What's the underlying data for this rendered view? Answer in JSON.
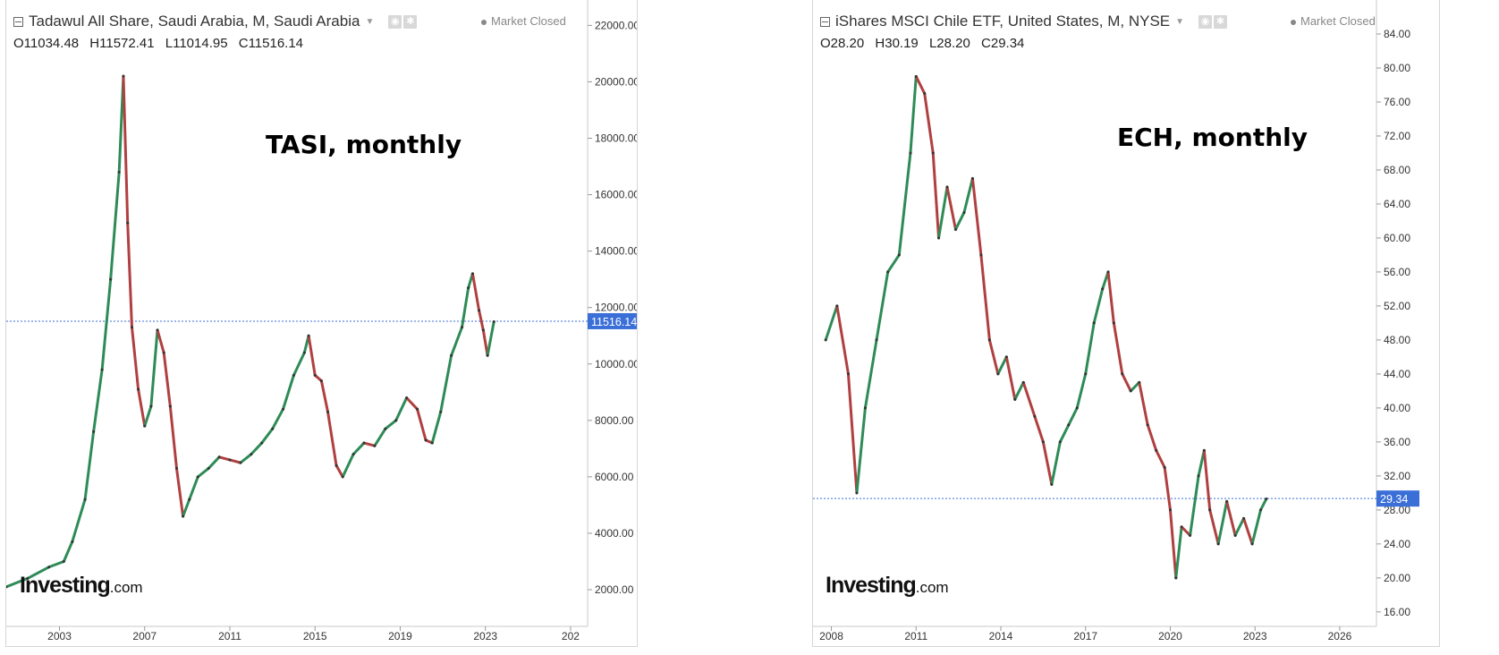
{
  "charts": [
    {
      "header": {
        "title": "Tadawul All Share, Saudi Arabia, M, Saudi Arabia",
        "market_status": "Market Closed",
        "ohlc": {
          "o": "11034.48",
          "h": "11572.41",
          "l": "11014.95",
          "c": "11516.14"
        }
      },
      "annotation": "TASI, monthly",
      "logo": {
        "bold": "Investing",
        "suffix": ".com"
      },
      "last_price_label": "11516.14"
    },
    {
      "header": {
        "title": "iShares MSCI Chile ETF, United States, M, NYSE",
        "market_status": "Market Closed",
        "ohlc": {
          "o": "28.20",
          "h": "30.19",
          "l": "28.20",
          "c": "29.34"
        }
      },
      "annotation": "ECH, monthly",
      "logo": {
        "bold": "Investing",
        "suffix": ".com"
      },
      "last_price_label": "29.34"
    }
  ],
  "chart_data": [
    {
      "type": "line",
      "title": "Tadawul All Share, Saudi Arabia, M, Saudi Arabia",
      "annotation": "TASI, monthly",
      "x_ticks": [
        "2003",
        "2007",
        "2011",
        "2015",
        "2019",
        "2023",
        "202"
      ],
      "y_ticks": [
        "2000.00",
        "4000.00",
        "6000.00",
        "8000.00",
        "10000.00",
        "12000.00",
        "14000.00",
        "16000.00",
        "18000.00",
        "20000.00",
        "22000.00"
      ],
      "xlim": [
        2000.5,
        2027.8
      ],
      "ylim": [
        700,
        22900
      ],
      "last_price": 11516.14,
      "colors": {
        "up": "#2e8b57",
        "down": "#b04040",
        "price_line": "#3b6fd8"
      },
      "series": [
        {
          "x": [
            2000.5,
            2001.5,
            2002.5,
            2003.2,
            2003.6,
            2004.2,
            2004.6,
            2005.0,
            2005.4,
            2005.8,
            2006.0,
            2006.2,
            2006.4,
            2006.7,
            2007.0,
            2007.3,
            2007.6,
            2007.9,
            2008.2,
            2008.5,
            2008.8,
            2009.1,
            2009.5,
            2010.0,
            2010.5,
            2011.0,
            2011.5,
            2012.0,
            2012.5,
            2013.0,
            2013.5,
            2014.0,
            2014.5,
            2014.7,
            2015.0,
            2015.3,
            2015.6,
            2016.0,
            2016.3,
            2016.8,
            2017.3,
            2017.8,
            2018.3,
            2018.8,
            2019.3,
            2019.8,
            2020.2,
            2020.5,
            2020.9,
            2021.4,
            2021.9,
            2022.2,
            2022.4,
            2022.7,
            2022.9,
            2023.1,
            2023.4
          ],
          "y": [
            2100,
            2400,
            2800,
            3000,
            3700,
            5200,
            7600,
            9800,
            13000,
            16800,
            20200,
            15000,
            11300,
            9100,
            7800,
            8500,
            11200,
            10400,
            8500,
            6300,
            4600,
            5200,
            6000,
            6300,
            6700,
            6600,
            6500,
            6800,
            7200,
            7700,
            8400,
            9600,
            10400,
            11000,
            9600,
            9400,
            8300,
            6400,
            6000,
            6800,
            7200,
            7100,
            7700,
            8000,
            8800,
            8400,
            7300,
            7200,
            8300,
            10300,
            11300,
            12700,
            13200,
            11900,
            11200,
            10300,
            11500
          ]
        }
      ]
    },
    {
      "type": "line",
      "title": "iShares MSCI Chile ETF, United States, M, NYSE",
      "annotation": "ECH, monthly",
      "x_ticks": [
        "2008",
        "2011",
        "2014",
        "2017",
        "2020",
        "2023",
        "2026"
      ],
      "y_ticks": [
        "16.00",
        "20.00",
        "24.00",
        "28.00",
        "32.00",
        "36.00",
        "40.00",
        "44.00",
        "48.00",
        "52.00",
        "56.00",
        "60.00",
        "64.00",
        "68.00",
        "72.00",
        "76.00",
        "80.00",
        "84.00"
      ],
      "xlim": [
        2007.35,
        2027.3
      ],
      "ylim": [
        14.3,
        88.0
      ],
      "last_price": 29.34,
      "colors": {
        "up": "#2e8b57",
        "down": "#b04040",
        "price_line": "#3b6fd8"
      },
      "series": [
        {
          "x": [
            2007.8,
            2008.2,
            2008.6,
            2008.9,
            2009.2,
            2009.6,
            2010.0,
            2010.4,
            2010.8,
            2011.0,
            2011.3,
            2011.6,
            2011.8,
            2012.1,
            2012.4,
            2012.7,
            2013.0,
            2013.3,
            2013.6,
            2013.9,
            2014.2,
            2014.5,
            2014.8,
            2015.2,
            2015.5,
            2015.8,
            2016.1,
            2016.4,
            2016.7,
            2017.0,
            2017.3,
            2017.6,
            2017.8,
            2018.0,
            2018.3,
            2018.6,
            2018.9,
            2019.2,
            2019.5,
            2019.8,
            2020.0,
            2020.2,
            2020.4,
            2020.7,
            2021.0,
            2021.2,
            2021.4,
            2021.7,
            2022.0,
            2022.3,
            2022.6,
            2022.9,
            2023.2,
            2023.4
          ],
          "y": [
            48,
            52,
            44,
            30,
            40,
            48,
            56,
            58,
            70,
            79,
            77,
            70,
            60,
            66,
            61,
            63,
            67,
            58,
            48,
            44,
            46,
            41,
            43,
            39,
            36,
            31,
            36,
            38,
            40,
            44,
            50,
            54,
            56,
            50,
            44,
            42,
            43,
            38,
            35,
            33,
            28,
            20,
            26,
            25,
            32,
            35,
            28,
            24,
            29,
            25,
            27,
            24,
            28,
            29.3
          ]
        }
      ]
    }
  ]
}
